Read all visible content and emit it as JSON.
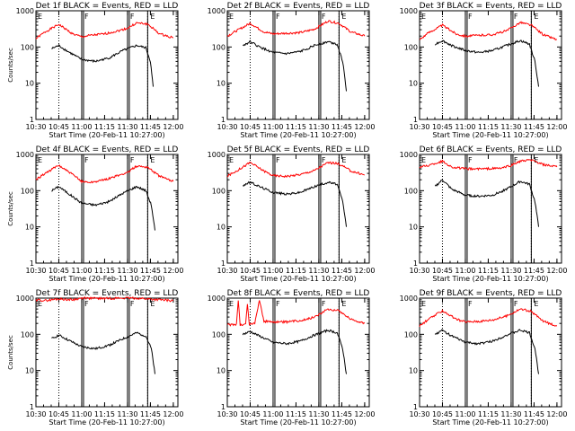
{
  "chart_data": [
    {
      "type": "line",
      "title": "Det 1f BLACK = Events, RED = LLD",
      "xlabel": "Start Time (20-Feb-11 10:27:00)",
      "ylabel": "Counts/sec",
      "yscale": "log",
      "ylim": [
        1,
        1000
      ],
      "xticks": [
        "10:30",
        "10:45",
        "11:00",
        "11:15",
        "11:30",
        "11:45",
        "12:00"
      ],
      "yticks": [
        "1",
        "10",
        "100",
        "1000"
      ],
      "markers": [
        {
          "x": 11.0,
          "label": "F"
        },
        {
          "x": 11.5,
          "label": "F"
        },
        {
          "x": 11.72,
          "label": "E"
        }
      ],
      "dotted": [
        10.75,
        11.72
      ],
      "series": [
        {
          "color": "#ff0000",
          "x": [
            10.5,
            10.6,
            10.75,
            10.9,
            11.0,
            11.1,
            11.25,
            11.4,
            11.5,
            11.6,
            11.72,
            11.85,
            12.0
          ],
          "values": [
            170,
            260,
            420,
            230,
            190,
            210,
            230,
            280,
            330,
            460,
            430,
            230,
            180
          ]
        },
        {
          "color": "#000000",
          "x": [
            10.67,
            10.75,
            10.85,
            11.0,
            11.15,
            11.3,
            11.45,
            11.6,
            11.7,
            11.75,
            11.78
          ],
          "values": [
            90,
            110,
            75,
            45,
            40,
            50,
            80,
            110,
            95,
            40,
            8
          ]
        }
      ]
    },
    {
      "type": "line",
      "title": "Det 2f BLACK = Events, RED = LLD",
      "xlabel": "Start Time (20-Feb-11 10:27:00)",
      "ylabel": "",
      "yscale": "log",
      "ylim": [
        1,
        1000
      ],
      "xticks": [
        "10:30",
        "10:45",
        "11:00",
        "11:15",
        "11:30",
        "11:45",
        "12:00"
      ],
      "yticks": [
        "1",
        "10",
        "100",
        "1000"
      ],
      "markers": [
        {
          "x": 11.0,
          "label": "F"
        },
        {
          "x": 11.5,
          "label": "F"
        },
        {
          "x": 11.72,
          "label": "E"
        }
      ],
      "dotted": [
        10.75,
        11.72
      ],
      "series": [
        {
          "color": "#ff0000",
          "x": [
            10.5,
            10.6,
            10.75,
            10.9,
            11.0,
            11.15,
            11.3,
            11.45,
            11.6,
            11.72,
            11.85,
            12.0
          ],
          "values": [
            200,
            280,
            450,
            260,
            230,
            240,
            250,
            310,
            520,
            450,
            260,
            200
          ]
        },
        {
          "color": "#000000",
          "x": [
            10.67,
            10.75,
            10.85,
            11.0,
            11.15,
            11.3,
            11.45,
            11.6,
            11.7,
            11.76,
            11.8
          ],
          "values": [
            110,
            140,
            100,
            70,
            65,
            75,
            110,
            140,
            120,
            40,
            6
          ]
        }
      ]
    },
    {
      "type": "line",
      "title": "Det 3f BLACK = Events, RED = LLD",
      "xlabel": "Start Time (20-Feb-11 10:27:00)",
      "ylabel": "",
      "yscale": "log",
      "ylim": [
        1,
        1000
      ],
      "xticks": [
        "10:30",
        "10:45",
        "11:00",
        "11:15",
        "11:30",
        "11:45",
        "12:00"
      ],
      "yticks": [
        "1",
        "10",
        "100",
        "1000"
      ],
      "markers": [
        {
          "x": 11.0,
          "label": "F"
        },
        {
          "x": 11.5,
          "label": "F"
        },
        {
          "x": 11.72,
          "label": "E"
        }
      ],
      "dotted": [
        10.75,
        11.72
      ],
      "series": [
        {
          "color": "#ff0000",
          "x": [
            10.5,
            10.6,
            10.75,
            10.9,
            11.0,
            11.15,
            11.3,
            11.45,
            11.6,
            11.72,
            11.85,
            12.0
          ],
          "values": [
            160,
            250,
            400,
            230,
            200,
            210,
            220,
            280,
            480,
            400,
            220,
            160
          ]
        },
        {
          "color": "#000000",
          "x": [
            10.67,
            10.75,
            10.85,
            11.0,
            11.15,
            11.3,
            11.45,
            11.6,
            11.7,
            11.76,
            11.8
          ],
          "values": [
            120,
            150,
            110,
            80,
            70,
            80,
            110,
            150,
            120,
            40,
            8
          ]
        }
      ]
    },
    {
      "type": "line",
      "title": "Det 4f BLACK = Events, RED = LLD",
      "xlabel": "Start Time (20-Feb-11 10:27:00)",
      "ylabel": "Counts/sec",
      "yscale": "log",
      "ylim": [
        1,
        1000
      ],
      "xticks": [
        "10:30",
        "10:45",
        "11:00",
        "11:15",
        "11:30",
        "11:45",
        "12:00"
      ],
      "yticks": [
        "1",
        "10",
        "100",
        "1000"
      ],
      "markers": [
        {
          "x": 11.0,
          "label": "F"
        },
        {
          "x": 11.5,
          "label": "F"
        },
        {
          "x": 11.72,
          "label": "E"
        }
      ],
      "dotted": [
        10.75,
        11.72
      ],
      "series": [
        {
          "color": "#ff0000",
          "x": [
            10.5,
            10.6,
            10.75,
            10.9,
            11.0,
            11.1,
            11.25,
            11.4,
            11.5,
            11.6,
            11.72,
            11.85,
            12.0
          ],
          "values": [
            200,
            300,
            500,
            280,
            180,
            170,
            200,
            260,
            320,
            480,
            450,
            250,
            180
          ]
        },
        {
          "color": "#000000",
          "x": [
            10.67,
            10.75,
            10.85,
            11.0,
            11.15,
            11.3,
            11.45,
            11.6,
            11.7,
            11.76,
            11.8
          ],
          "values": [
            100,
            130,
            85,
            45,
            40,
            50,
            85,
            130,
            100,
            40,
            8
          ]
        }
      ]
    },
    {
      "type": "line",
      "title": "Det 5f BLACK = Events, RED = LLD",
      "xlabel": "Start Time (20-Feb-11 10:27:00)",
      "ylabel": "",
      "yscale": "log",
      "ylim": [
        1,
        1000
      ],
      "xticks": [
        "10:30",
        "10:45",
        "11:00",
        "11:15",
        "11:30",
        "11:45",
        "12:00"
      ],
      "yticks": [
        "1",
        "10",
        "100",
        "1000"
      ],
      "markers": [
        {
          "x": 11.0,
          "label": "F"
        },
        {
          "x": 11.5,
          "label": "F"
        },
        {
          "x": 11.72,
          "label": "E"
        }
      ],
      "dotted": [
        10.75,
        11.72
      ],
      "series": [
        {
          "color": "#ff0000",
          "x": [
            10.5,
            10.6,
            10.75,
            10.9,
            11.0,
            11.15,
            11.3,
            11.45,
            11.6,
            11.72,
            11.85,
            12.0
          ],
          "values": [
            250,
            350,
            600,
            350,
            260,
            250,
            280,
            360,
            600,
            550,
            350,
            270
          ]
        },
        {
          "color": "#000000",
          "x": [
            10.67,
            10.75,
            10.85,
            11.0,
            11.15,
            11.3,
            11.45,
            11.6,
            11.7,
            11.76,
            11.8
          ],
          "values": [
            140,
            170,
            130,
            90,
            80,
            90,
            130,
            170,
            150,
            50,
            10
          ]
        }
      ]
    },
    {
      "type": "line",
      "title": "Det 6f BLACK = Events, RED = LLD",
      "xlabel": "Start Time (20-Feb-11 10:27:00)",
      "ylabel": "",
      "yscale": "log",
      "ylim": [
        1,
        1000
      ],
      "xticks": [
        "10:30",
        "10:45",
        "11:00",
        "11:15",
        "11:30",
        "11:45",
        "12:00"
      ],
      "yticks": [
        "1",
        "10",
        "100",
        "1000"
      ],
      "markers": [
        {
          "x": 11.0,
          "label": "F"
        },
        {
          "x": 11.5,
          "label": "F"
        },
        {
          "x": 11.72,
          "label": "E"
        }
      ],
      "dotted": [
        10.75,
        11.72
      ],
      "series": [
        {
          "color": "#ff0000",
          "x": [
            10.5,
            10.6,
            10.75,
            10.85,
            11.0,
            11.2,
            11.4,
            11.5,
            11.6,
            11.72,
            11.85,
            12.0
          ],
          "values": [
            450,
            500,
            650,
            450,
            400,
            400,
            420,
            500,
            650,
            700,
            520,
            450
          ]
        },
        {
          "color": "#000000",
          "x": [
            10.67,
            10.75,
            10.85,
            11.0,
            11.15,
            11.3,
            11.45,
            11.6,
            11.7,
            11.76,
            11.8
          ],
          "values": [
            130,
            200,
            110,
            75,
            70,
            75,
            110,
            180,
            150,
            50,
            10
          ]
        }
      ]
    },
    {
      "type": "line",
      "title": "Det 7f BLACK = Events, RED = LLD",
      "xlabel": "Start Time (20-Feb-11 10:27:00)",
      "ylabel": "Counts/sec",
      "yscale": "log",
      "ylim": [
        1,
        1000
      ],
      "xticks": [
        "10:30",
        "10:45",
        "11:00",
        "11:15",
        "11:30",
        "11:45",
        "12:00"
      ],
      "yticks": [
        "1",
        "10",
        "100",
        "1000"
      ],
      "markers": [
        {
          "x": 11.0,
          "label": "F"
        },
        {
          "x": 11.5,
          "label": "F"
        },
        {
          "x": 11.72,
          "label": "E"
        }
      ],
      "dotted": [
        10.75,
        11.72
      ],
      "series": [
        {
          "color": "#ff0000",
          "x": [
            10.5,
            10.6,
            10.75,
            10.9,
            11.0,
            11.2,
            11.4,
            11.5,
            11.6,
            11.72,
            11.85,
            12.0
          ],
          "values": [
            900,
            850,
            950,
            900,
            1000,
            980,
            1000,
            1000,
            1000,
            950,
            900,
            850
          ]
        },
        {
          "color": "#000000",
          "x": [
            10.67,
            10.75,
            10.85,
            11.0,
            11.15,
            11.3,
            11.45,
            11.6,
            11.7,
            11.76,
            11.8
          ],
          "values": [
            75,
            95,
            70,
            45,
            40,
            50,
            75,
            110,
            90,
            40,
            8
          ]
        }
      ]
    },
    {
      "type": "line",
      "title": "Det 8f BLACK = Events, RED = LLD",
      "xlabel": "Start Time (20-Feb-11 10:27:00)",
      "ylabel": "",
      "yscale": "log",
      "ylim": [
        1,
        1000
      ],
      "xticks": [
        "10:30",
        "10:45",
        "11:00",
        "11:15",
        "11:30",
        "11:45",
        "12:00"
      ],
      "yticks": [
        "1",
        "10",
        "100",
        "1000"
      ],
      "markers": [
        {
          "x": 11.0,
          "label": "F"
        },
        {
          "x": 11.5,
          "label": "F"
        },
        {
          "x": 11.72,
          "label": "E"
        }
      ],
      "dotted": [
        10.75,
        11.72
      ],
      "series": [
        {
          "color": "#ff0000",
          "x": [
            10.5,
            10.6,
            10.62,
            10.64,
            10.7,
            10.72,
            10.74,
            10.8,
            10.85,
            10.9,
            11.0,
            11.15,
            11.3,
            11.45,
            11.6,
            11.72,
            11.85,
            12.0
          ],
          "values": [
            180,
            190,
            900,
            180,
            190,
            700,
            190,
            200,
            900,
            230,
            220,
            220,
            240,
            300,
            500,
            450,
            260,
            200
          ]
        },
        {
          "color": "#000000",
          "x": [
            10.67,
            10.75,
            10.85,
            11.0,
            11.15,
            11.3,
            11.45,
            11.6,
            11.7,
            11.76,
            11.8
          ],
          "values": [
            100,
            120,
            90,
            60,
            55,
            65,
            95,
            130,
            110,
            40,
            8
          ]
        }
      ]
    },
    {
      "type": "line",
      "title": "Det 9f BLACK = Events, RED = LLD",
      "xlabel": "Start Time (20-Feb-11 10:27:00)",
      "ylabel": "",
      "yscale": "log",
      "ylim": [
        1,
        1000
      ],
      "xticks": [
        "10:30",
        "10:45",
        "11:00",
        "11:15",
        "11:30",
        "11:45",
        "12:00"
      ],
      "yticks": [
        "1",
        "10",
        "100",
        "1000"
      ],
      "markers": [
        {
          "x": 11.0,
          "label": "F"
        },
        {
          "x": 11.5,
          "label": "F"
        },
        {
          "x": 11.72,
          "label": "E"
        }
      ],
      "dotted": [
        10.75,
        11.72
      ],
      "series": [
        {
          "color": "#ff0000",
          "x": [
            10.5,
            10.6,
            10.75,
            10.9,
            11.0,
            11.15,
            11.3,
            11.45,
            11.6,
            11.72,
            11.85,
            12.0
          ],
          "values": [
            170,
            260,
            450,
            260,
            220,
            230,
            250,
            320,
            500,
            430,
            230,
            170
          ]
        },
        {
          "color": "#000000",
          "x": [
            10.67,
            10.75,
            10.85,
            11.0,
            11.15,
            11.3,
            11.45,
            11.6,
            11.7,
            11.76,
            11.8
          ],
          "values": [
            100,
            130,
            90,
            60,
            55,
            65,
            95,
            130,
            110,
            40,
            8
          ]
        }
      ]
    }
  ]
}
